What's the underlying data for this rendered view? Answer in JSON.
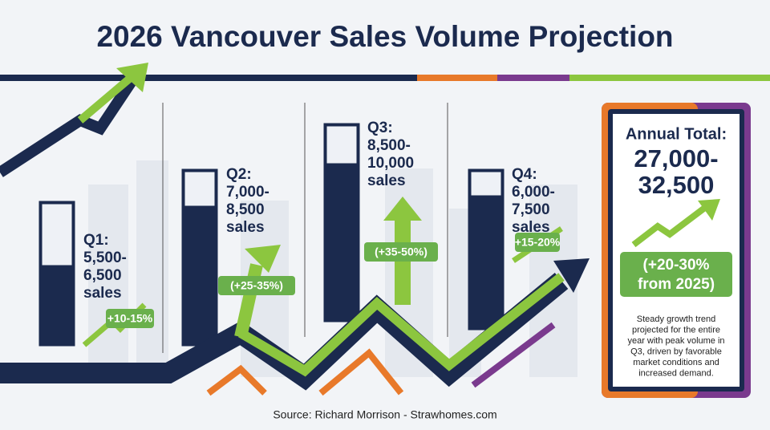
{
  "title": "2026 Vancouver Sales Volume Projection",
  "quarters": [
    {
      "lines": [
        "Q1:",
        "5,500-",
        "6,500",
        "sales"
      ],
      "growth": "+10-15%"
    },
    {
      "lines": [
        "Q2:",
        "7,000-",
        "8,500",
        "sales"
      ],
      "growth": "(+25-35%)"
    },
    {
      "lines": [
        "Q3:",
        "8,500-",
        "10,000",
        "sales"
      ],
      "growth": "(+35-50%)"
    },
    {
      "lines": [
        "Q4:",
        "6,000-",
        "7,500",
        "sales"
      ],
      "growth": "+15-20%"
    }
  ],
  "annual": {
    "heading": "Annual Total:",
    "range": [
      "27,000-",
      "32,500"
    ],
    "growth": [
      "(+20-30%",
      "from 2025)"
    ],
    "description": [
      "Steady growth trend",
      "projected for the entire",
      "year with peak volume in",
      "Q3, driven by favorable",
      "market conditions and",
      "increased demand."
    ]
  },
  "source": "Source: Richard Morrison - Strawhomes.com"
}
